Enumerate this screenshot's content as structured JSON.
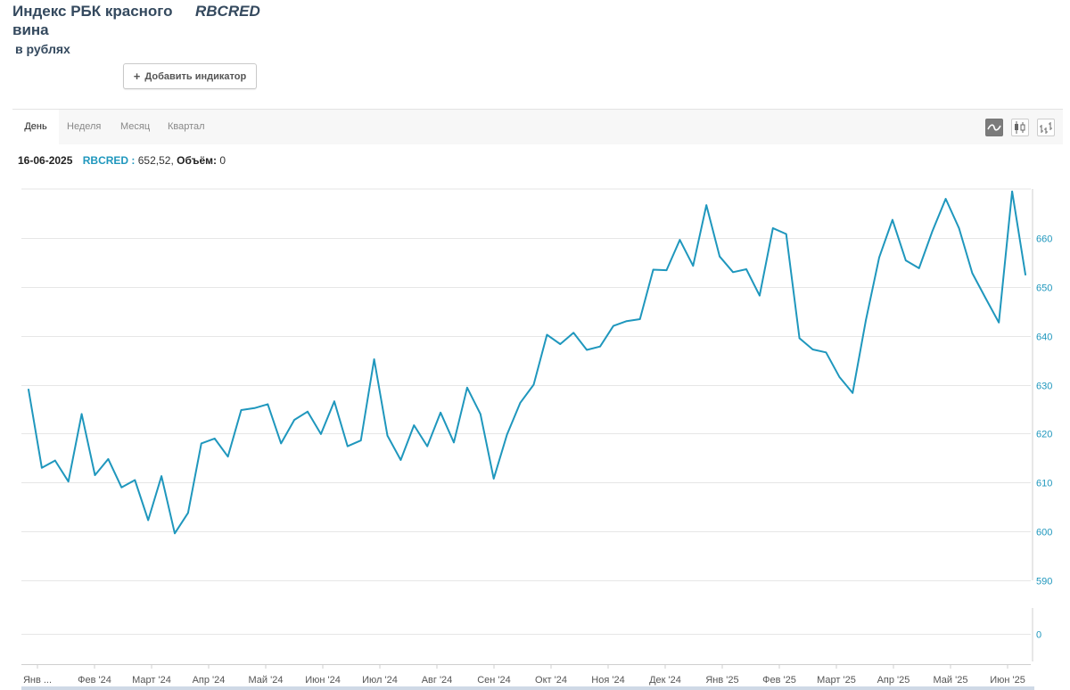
{
  "header": {
    "title": "Индекс РБК красного вина",
    "ticker": "RBCRED",
    "subtitle": "в рублях",
    "add_indicator_label": "Добавить индикатор",
    "add_indicator_icon": "+"
  },
  "toolbar": {
    "tabs": [
      {
        "label": "День",
        "active": true
      },
      {
        "label": "Неделя",
        "active": false
      },
      {
        "label": "Месяц",
        "active": false
      },
      {
        "label": "Квартал",
        "active": false
      }
    ],
    "chart_types": [
      "line-chart-icon",
      "candlestick-icon",
      "ohlc-bar-icon"
    ]
  },
  "info": {
    "date": "16-06-2025",
    "ticker": "RBCRED :",
    "value": " 652,52, ",
    "volume_label": "Объём:",
    "volume_value": " 0"
  },
  "colors": {
    "line": "#1f97bd",
    "axis_labels": "#1f97bd",
    "grid": "#e6e6e6",
    "text": "#34495e"
  },
  "chart_data": {
    "type": "line",
    "series": [
      {
        "values": [
          629,
          613,
          614.5,
          610.2,
          624,
          611.5,
          614.8,
          609,
          610.5,
          602.3,
          611.3,
          599.6,
          603.8,
          618,
          619,
          615.3,
          624.8,
          625.2,
          626,
          618,
          622.8,
          624.5,
          619.9,
          626.6,
          617.4,
          618.6,
          635.2,
          619.6,
          614.6,
          621.7,
          617.4,
          624.3,
          618.2,
          629.4,
          624,
          610.8,
          619.8,
          626.3,
          630,
          640.2,
          638.3,
          640.6,
          637.1,
          637.8,
          642,
          643,
          643.4,
          653.5,
          653.4,
          659.6,
          654.3,
          666.7,
          656.2,
          653,
          653.6,
          648.2,
          662,
          660.8,
          639.5,
          637.2,
          636.6,
          631.6,
          628.3,
          643.2,
          656,
          663.7,
          655.4,
          653.8,
          661.4,
          668,
          662,
          652.8,
          647.7,
          642.7,
          669.5,
          652.5
        ]
      }
    ],
    "x_ticks": [
      "Янв ...",
      "Фев '24",
      "Март '24",
      "Апр '24",
      "Май '24",
      "Июн '24",
      "Июл '24",
      "Авг '24",
      "Сен '24",
      "Окт '24",
      "Ноя '24",
      "Дек '24",
      "Янв '25",
      "Фев '25",
      "Март '25",
      "Апр '25",
      "Май '25",
      "Июн '25"
    ],
    "y_ticks": [
      590,
      600,
      610,
      620,
      630,
      640,
      650,
      660
    ],
    "ylim": [
      590,
      670
    ],
    "volume_ticks": [
      0
    ],
    "grid": true,
    "legend": "none"
  }
}
